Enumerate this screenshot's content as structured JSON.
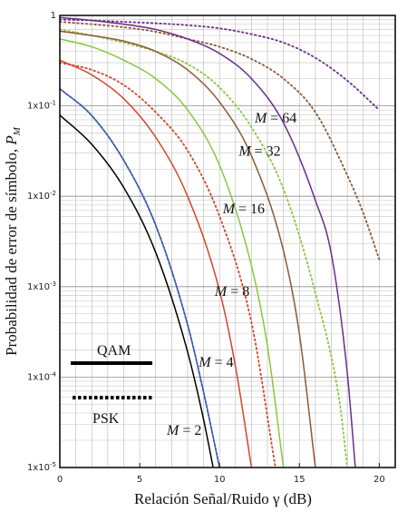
{
  "chart_data": {
    "type": "line",
    "title": "",
    "xlabel": "Relación Señal/Ruido γ (dB)",
    "ylabel_main": "Probabilidad de error de símbolo, ",
    "ylabel_sym": "P",
    "ylabel_sub": "M",
    "xlim": [
      0,
      21
    ],
    "ylim": [
      1e-05,
      1
    ],
    "yscale": "log",
    "grid": true,
    "x_ticks": [
      0,
      5,
      10,
      15,
      20
    ],
    "x_tick_labels": [
      "0",
      "5",
      "10",
      "15",
      "20"
    ],
    "y_ticks": [
      1,
      0.1,
      0.01,
      0.001,
      0.0001,
      1e-05
    ],
    "y_tick_labels": [
      {
        "mant": "1",
        "exp": ""
      },
      {
        "mant": "1x10",
        "exp": "-1"
      },
      {
        "mant": "1x10",
        "exp": "-2"
      },
      {
        "mant": "1x10",
        "exp": "-3"
      },
      {
        "mant": "1x10",
        "exp": "-4"
      },
      {
        "mant": "1x10",
        "exp": "-5"
      }
    ],
    "legend": [
      {
        "label": "QAM",
        "style": "solid"
      },
      {
        "label": "PSK",
        "style": "dotted"
      }
    ],
    "series": [
      {
        "modulation": "QAM",
        "style": "solid",
        "M": 2,
        "color": "#000000",
        "x": [
          0,
          2,
          4,
          6,
          8,
          9,
          9.6
        ],
        "y": [
          0.079,
          0.0375,
          0.0125,
          0.0024,
          0.00019,
          3.4e-05,
          1e-05
        ]
      },
      {
        "modulation": "QAM",
        "style": "solid",
        "M": 4,
        "color": "#3b5ea8",
        "x": [
          0,
          2,
          4,
          6,
          8,
          9,
          10
        ],
        "y": [
          0.155,
          0.078,
          0.025,
          0.0048,
          0.00038,
          6.8e-05,
          1e-05
        ]
      },
      {
        "modulation": "PSK",
        "style": "dotted",
        "M": 4,
        "color": "#3b5ea8",
        "x": [
          0,
          2,
          4,
          6,
          8,
          9,
          10
        ],
        "y": [
          0.155,
          0.078,
          0.025,
          0.0048,
          0.00038,
          6.8e-05,
          1e-05
        ]
      },
      {
        "modulation": "QAM",
        "style": "solid",
        "M": 8,
        "color": "#d2452b",
        "x": [
          0,
          2,
          4,
          6,
          8,
          10,
          11,
          12
        ],
        "y": [
          0.32,
          0.22,
          0.12,
          0.045,
          0.01,
          0.0009,
          0.00013,
          1e-05
        ]
      },
      {
        "modulation": "PSK",
        "style": "dotted",
        "M": 8,
        "color": "#d2452b",
        "x": [
          0,
          2,
          4,
          6,
          8,
          10,
          12,
          13.5
        ],
        "y": [
          0.3,
          0.25,
          0.17,
          0.085,
          0.032,
          0.006,
          0.0004,
          1e-05
        ]
      },
      {
        "modulation": "QAM",
        "style": "solid",
        "M": 16,
        "color": "#8cc63f",
        "x": [
          0,
          2,
          4,
          6,
          8,
          10,
          12,
          13,
          14
        ],
        "y": [
          0.55,
          0.45,
          0.32,
          0.2,
          0.09,
          0.022,
          0.0017,
          0.00022,
          1e-05
        ]
      },
      {
        "modulation": "PSK",
        "style": "dotted",
        "M": 16,
        "color": "#8cc63f",
        "x": [
          0,
          2,
          4,
          6,
          8,
          10,
          12,
          14,
          16,
          17.5,
          18
        ],
        "y": [
          0.7,
          0.6,
          0.5,
          0.4,
          0.29,
          0.16,
          0.058,
          0.012,
          0.00085,
          5.5e-05,
          1e-05
        ]
      },
      {
        "modulation": "QAM",
        "style": "solid",
        "M": 32,
        "color": "#8b5a36",
        "x": [
          0,
          2,
          4,
          6,
          8,
          10,
          12,
          14,
          15,
          16
        ],
        "y": [
          0.67,
          0.6,
          0.52,
          0.4,
          0.25,
          0.11,
          0.028,
          0.0025,
          0.0003,
          1e-05
        ]
      },
      {
        "modulation": "PSK",
        "style": "dotted",
        "M": 32,
        "color": "#8b5a36",
        "x": [
          0,
          2,
          4,
          6,
          8,
          10,
          12,
          14,
          16,
          18,
          19,
          20
        ],
        "y": [
          0.85,
          0.8,
          0.74,
          0.66,
          0.55,
          0.45,
          0.33,
          0.2,
          0.085,
          0.017,
          0.0065,
          0.002
        ]
      },
      {
        "modulation": "QAM",
        "style": "solid",
        "M": 64,
        "color": "#6b2c8b",
        "x": [
          0,
          2,
          4,
          6,
          8,
          10,
          12,
          14,
          16,
          17,
          18,
          18.5
        ],
        "y": [
          0.95,
          0.88,
          0.8,
          0.7,
          0.55,
          0.38,
          0.2,
          0.065,
          0.009,
          0.0023,
          0.00011,
          1e-05
        ]
      },
      {
        "modulation": "PSK",
        "style": "dotted",
        "M": 64,
        "color": "#6b2c8b",
        "x": [
          0,
          2,
          4,
          6,
          8,
          10,
          12,
          14,
          16,
          18,
          20
        ],
        "y": [
          0.9,
          0.88,
          0.85,
          0.82,
          0.78,
          0.72,
          0.62,
          0.5,
          0.34,
          0.19,
          0.09
        ]
      }
    ],
    "annotations": [
      {
        "m_symbol": "M",
        "m_value": " = 2",
        "x": 6.7,
        "y": 2.3e-05
      },
      {
        "m_symbol": "M",
        "m_value": " = 4",
        "x": 8.7,
        "y": 0.00013
      },
      {
        "m_symbol": "M",
        "m_value": " = 8",
        "x": 9.7,
        "y": 0.00079
      },
      {
        "m_symbol": "M",
        "m_value": " = 16",
        "x": 10.2,
        "y": 0.0065
      },
      {
        "m_symbol": "M",
        "m_value": " = 32",
        "x": 11.2,
        "y": 0.028
      },
      {
        "m_symbol": "M",
        "m_value": " = 64",
        "x": 12.2,
        "y": 0.065
      }
    ]
  }
}
